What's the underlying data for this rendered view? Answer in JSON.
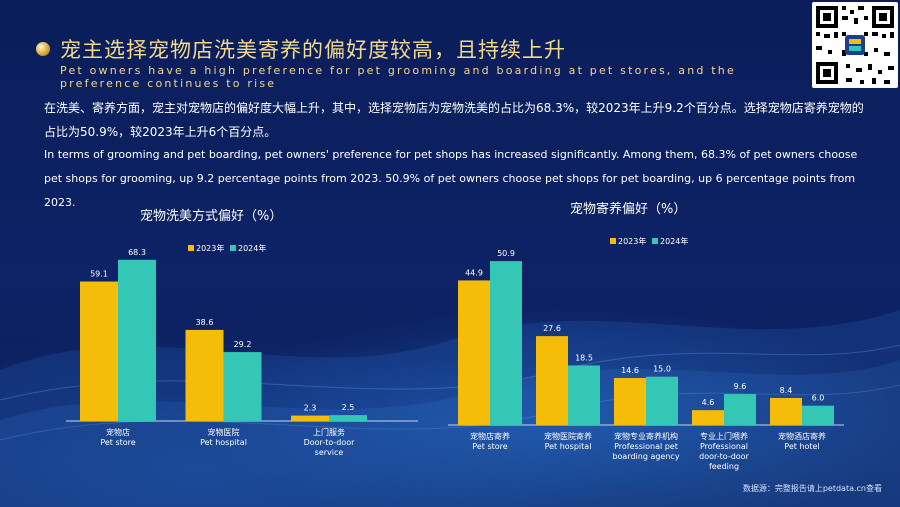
{
  "header": {
    "title_cn": "宠主选择宠物店洗美寄养的偏好度较高，且持续上升",
    "title_en": "Pet owners have a high preference for pet grooming and boarding at pet stores, and the preference continues to rise"
  },
  "body": {
    "para_cn": "在洗美、寄养方面，宠主对宠物店的偏好度大幅上升，其中，选择宠物店为宠物洗美的占比为68.3%，较2023年上升9.2个百分点。选择宠物店寄养宠物的占比为50.9%，较2023年上升6个百分点。",
    "para_en": "In terms of grooming and pet boarding, pet owners' preference for pet shops has increased significantly. Among them, 68.3% of pet owners choose pet shops for grooming, up 9.2 percentage points from 2023. 50.9% of pet owners choose pet shops for pet boarding, up 6 percentage points from 2023."
  },
  "colors": {
    "y2023": "#f5bd0a",
    "y2024": "#35c7b5",
    "title_gold": "#f3d98a",
    "background": "#0a1f5c"
  },
  "chart_data": [
    {
      "type": "bar",
      "title": "宠物洗美方式偏好（%）",
      "categories": [
        "宠物店\nPet store",
        "宠物医院\nPet hospital",
        "上门服务\nDoor-to-door\nservice"
      ],
      "series": [
        {
          "name": "2023年",
          "values": [
            59.1,
            38.6,
            2.3
          ]
        },
        {
          "name": "2024年",
          "values": [
            68.3,
            29.2,
            2.5
          ]
        }
      ],
      "legend": "top-right",
      "grid": false
    },
    {
      "type": "bar",
      "title": "宠物寄养偏好（%）",
      "categories": [
        "宠物店寄养\nPet store",
        "宠物医院寄养\nPet hospital",
        "宠物专业寄养机构\nProfessional pet\nboarding agency",
        "专业上门喂养\nProfessional\ndoor-to-door\nfeeding",
        "宠物酒店寄养\nPet hotel"
      ],
      "series": [
        {
          "name": "2023年",
          "values": [
            44.9,
            27.6,
            14.6,
            4.6,
            8.4
          ]
        },
        {
          "name": "2024年",
          "values": [
            50.9,
            18.5,
            15.0,
            9.6,
            6.0
          ]
        }
      ],
      "legend": "top-right",
      "grid": false
    }
  ],
  "footer": {
    "source": "数据源：完整报告请上petdata.cn查看"
  },
  "icons": {
    "bullet": "gold-orb-icon",
    "qr": "qr-code-icon"
  }
}
